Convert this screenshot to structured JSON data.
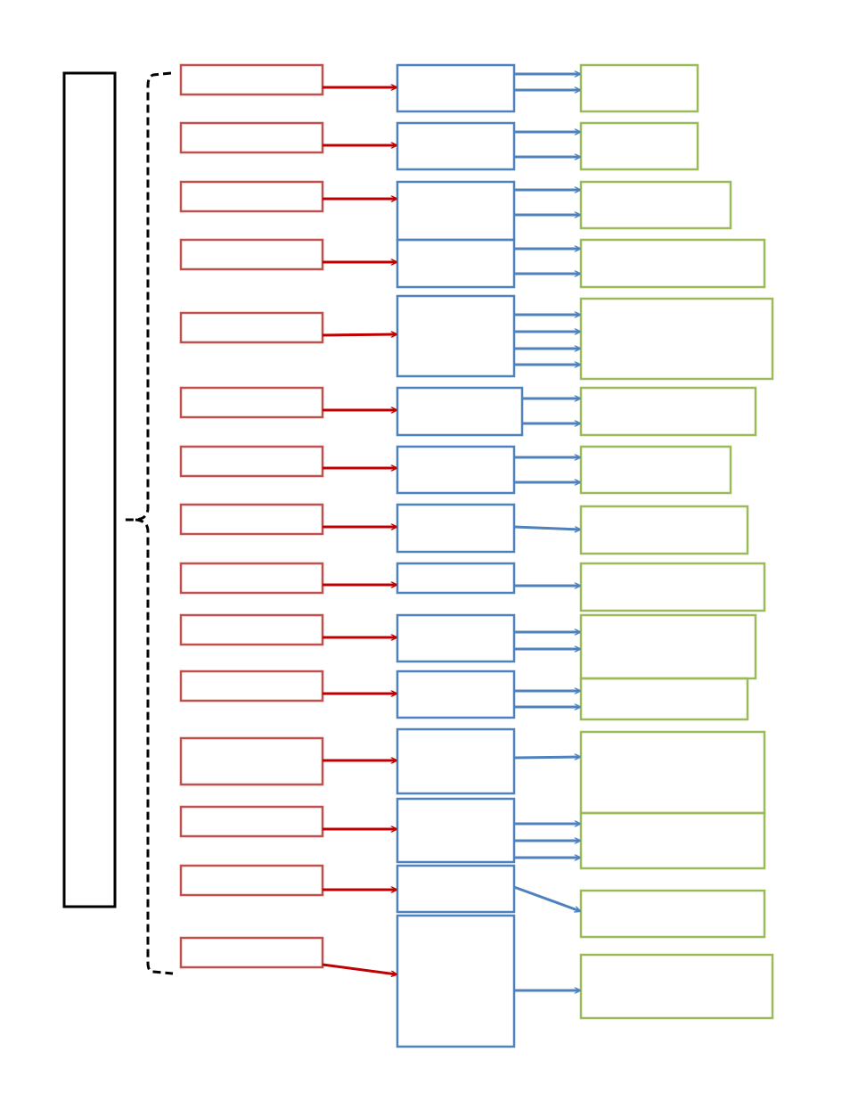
{
  "diagram": {
    "colors": {
      "root": "#000000",
      "bracket": "#000000",
      "left_boxes": "#c0504d",
      "left_arrows": "#c00000",
      "mid_boxes": "#4f81bd",
      "mid_arrows": "#4f81bd",
      "right_boxes": "#9bbb59",
      "background": "#ffffff"
    },
    "root_label": "",
    "rows": [
      {
        "left": "",
        "middle": "",
        "right": [
          "",
          ""
        ]
      },
      {
        "left": "",
        "middle": "",
        "right": [
          "",
          ""
        ]
      },
      {
        "left": "",
        "middle": "",
        "right": [
          "",
          ""
        ]
      },
      {
        "left": "",
        "middle": "",
        "right": [
          "",
          ""
        ]
      },
      {
        "left": "",
        "middle": "",
        "right": [
          "",
          "",
          "",
          ""
        ]
      },
      {
        "left": "",
        "middle": "",
        "right": [
          "",
          ""
        ]
      },
      {
        "left": "",
        "middle": "",
        "right": [
          "",
          ""
        ]
      },
      {
        "left": "",
        "middle": "",
        "right": [
          ""
        ]
      },
      {
        "left": "",
        "middle": "",
        "right": [
          ""
        ]
      },
      {
        "left": "",
        "middle": "",
        "right": [
          "",
          ""
        ]
      },
      {
        "left": "",
        "middle": "",
        "right": [
          "",
          ""
        ]
      },
      {
        "left": "",
        "middle": "",
        "right": [
          ""
        ]
      },
      {
        "left": "",
        "middle": "",
        "right": [
          "",
          "",
          ""
        ]
      },
      {
        "left": "",
        "middle": "",
        "right": [
          ""
        ]
      },
      {
        "left": "",
        "middle": "",
        "right": [
          ""
        ]
      }
    ]
  }
}
